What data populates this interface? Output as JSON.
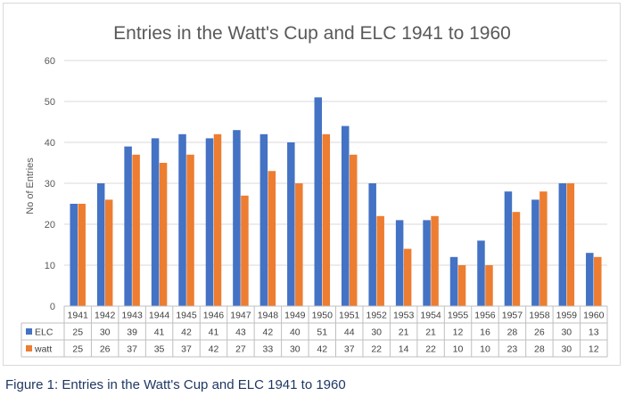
{
  "chart_data": {
    "type": "bar",
    "title": "Entries in the Watt's Cup and ELC 1941 to 1960",
    "xlabel": "",
    "ylabel": "No of Entries",
    "ylim": [
      0,
      60
    ],
    "yticks": [
      0,
      10,
      20,
      30,
      40,
      50,
      60
    ],
    "grid": true,
    "legend": "data-table",
    "categories": [
      "1941",
      "1942",
      "1943",
      "1944",
      "1945",
      "1946",
      "1947",
      "1948",
      "1949",
      "1950",
      "1951",
      "1952",
      "1953",
      "1954",
      "1955",
      "1956",
      "1957",
      "1958",
      "1959",
      "1960"
    ],
    "series": [
      {
        "name": "ELC",
        "color": "#4472c4",
        "values": [
          25,
          30,
          39,
          41,
          42,
          41,
          43,
          42,
          40,
          51,
          44,
          30,
          21,
          21,
          12,
          16,
          28,
          26,
          30,
          13
        ]
      },
      {
        "name": "watt",
        "color": "#ed7d31",
        "values": [
          25,
          26,
          37,
          35,
          37,
          42,
          27,
          33,
          30,
          42,
          37,
          22,
          14,
          22,
          10,
          10,
          23,
          28,
          30,
          12
        ]
      }
    ]
  },
  "caption": "Figure 1: Entries in the Watt's Cup and ELC 1941 to 1960"
}
